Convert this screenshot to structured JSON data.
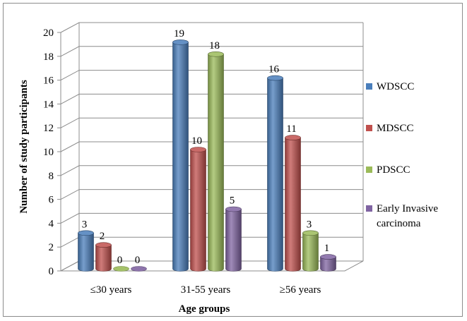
{
  "chart_data": {
    "type": "bar",
    "style": "3d-clustered-cylinder",
    "categories": [
      "≤30 years",
      "31-55 years",
      "≥56 years"
    ],
    "series": [
      {
        "name": "WDSCC",
        "values": [
          3,
          19,
          16
        ],
        "color": "#4a7ebb"
      },
      {
        "name": "MDSCC",
        "values": [
          2,
          10,
          11
        ],
        "color": "#c0504d"
      },
      {
        "name": "PDSCC",
        "values": [
          0,
          18,
          3
        ],
        "color": "#9bbb59"
      },
      {
        "name": [
          "Early Invasive",
          "carcinoma"
        ],
        "values": [
          0,
          5,
          1
        ],
        "color": "#8064a2"
      }
    ],
    "data_labels": true,
    "xlabel": "Age groups",
    "ylabel": "Number of study participants",
    "ylim": [
      0,
      20
    ],
    "y_ticks": [
      0,
      2,
      4,
      6,
      8,
      10,
      12,
      14,
      16,
      18,
      20
    ],
    "grid": true,
    "legend_position": "right"
  }
}
